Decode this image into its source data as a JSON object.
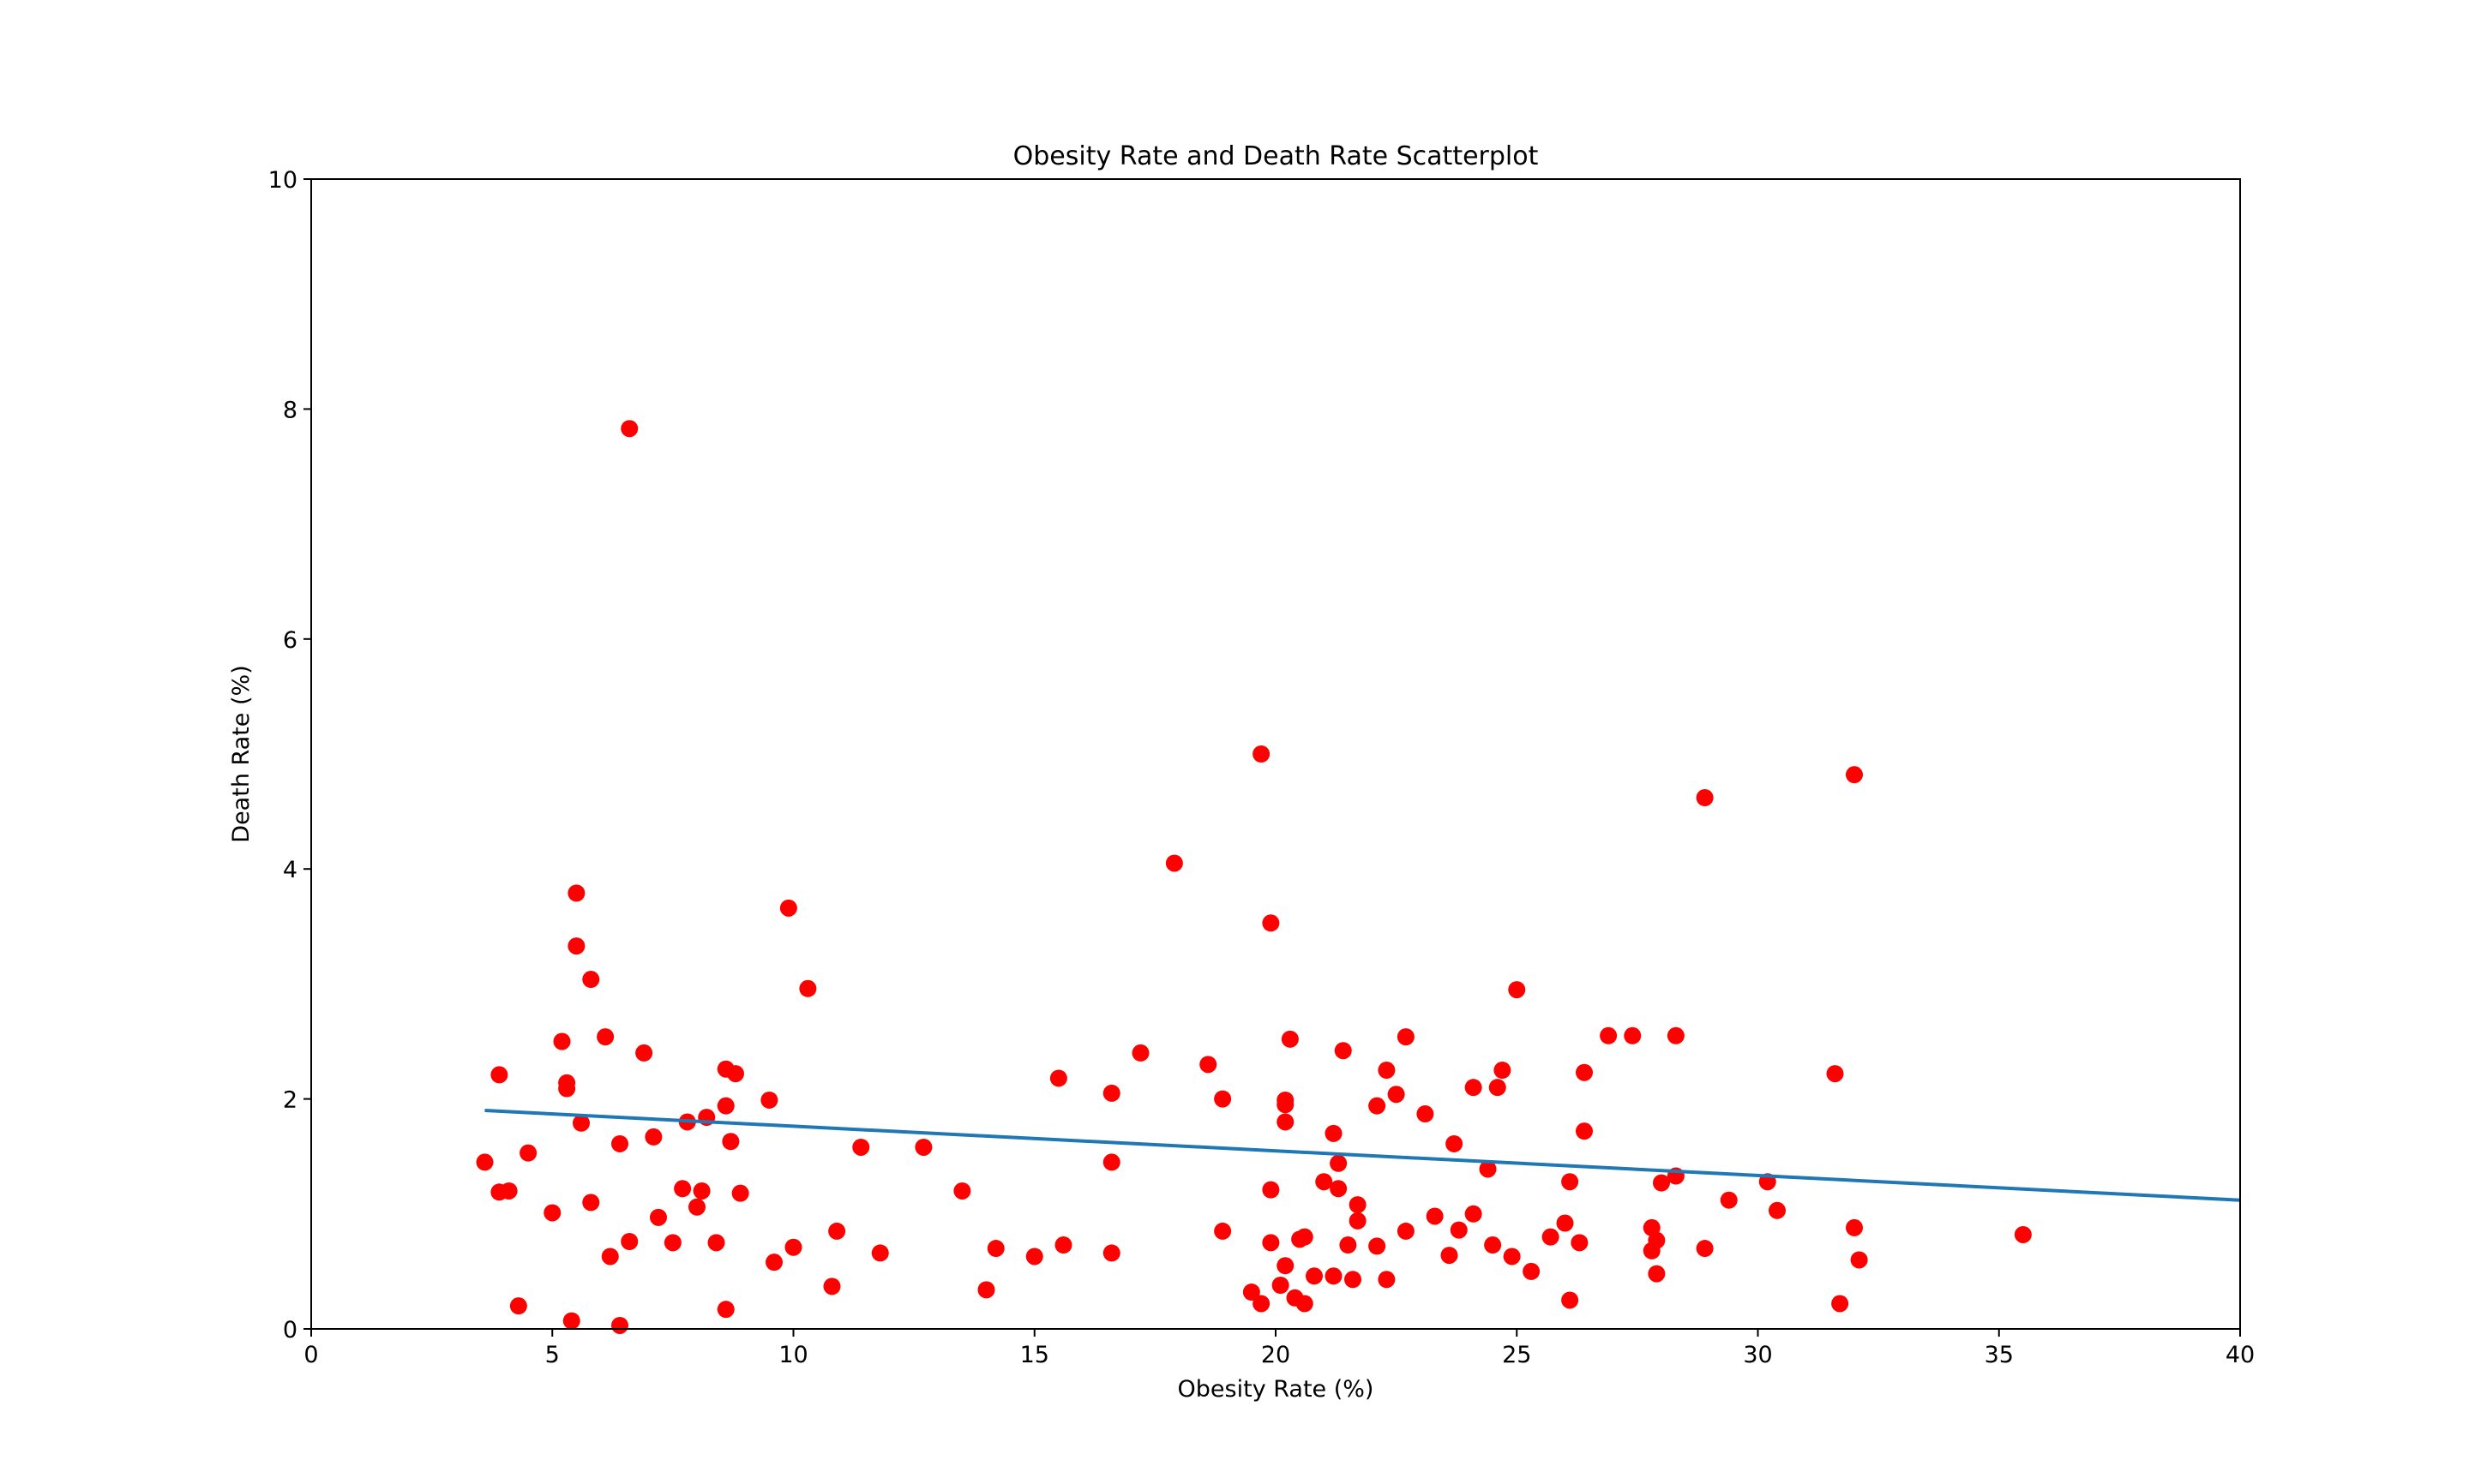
{
  "chart_data": {
    "type": "scatter",
    "title": "Obesity Rate and Death Rate Scatterplot",
    "xlabel": "Obesity Rate (%)",
    "ylabel": "Death Rate (%)",
    "xlim": [
      0,
      40
    ],
    "ylim": [
      0,
      10
    ],
    "xticks": [
      "0",
      "5",
      "10",
      "15",
      "20",
      "25",
      "30",
      "35",
      "40"
    ],
    "yticks": [
      "0",
      "2",
      "4",
      "6",
      "8",
      "10"
    ],
    "grid": false,
    "legend": "none",
    "point_color": "#ff0000",
    "line_color": "#1f77b4",
    "points": [
      [
        3.6,
        1.45
      ],
      [
        3.9,
        2.21
      ],
      [
        3.9,
        1.19
      ],
      [
        4.1,
        1.2
      ],
      [
        4.3,
        0.2
      ],
      [
        4.5,
        1.53
      ],
      [
        5.0,
        1.01
      ],
      [
        5.2,
        2.5
      ],
      [
        5.3,
        2.14
      ],
      [
        5.3,
        2.09
      ],
      [
        5.4,
        0.07
      ],
      [
        5.5,
        3.79
      ],
      [
        5.5,
        3.33
      ],
      [
        5.6,
        1.79
      ],
      [
        5.8,
        3.04
      ],
      [
        5.8,
        1.1
      ],
      [
        6.1,
        2.54
      ],
      [
        6.2,
        0.63
      ],
      [
        6.4,
        1.61
      ],
      [
        6.4,
        0.03
      ],
      [
        6.6,
        7.83
      ],
      [
        6.6,
        0.76
      ],
      [
        6.9,
        2.4
      ],
      [
        7.1,
        1.67
      ],
      [
        7.2,
        0.97
      ],
      [
        7.5,
        0.75
      ],
      [
        7.7,
        1.22
      ],
      [
        7.8,
        1.8
      ],
      [
        8.0,
        1.06
      ],
      [
        8.1,
        1.2
      ],
      [
        8.2,
        1.84
      ],
      [
        8.4,
        0.75
      ],
      [
        8.6,
        2.26
      ],
      [
        8.6,
        1.94
      ],
      [
        8.6,
        0.17
      ],
      [
        8.7,
        1.63
      ],
      [
        8.8,
        2.22
      ],
      [
        8.9,
        1.18
      ],
      [
        9.5,
        1.99
      ],
      [
        9.6,
        0.58
      ],
      [
        9.9,
        3.66
      ],
      [
        10.0,
        0.71
      ],
      [
        10.3,
        2.96
      ],
      [
        10.8,
        0.37
      ],
      [
        10.9,
        0.85
      ],
      [
        11.4,
        1.58
      ],
      [
        11.8,
        0.66
      ],
      [
        12.7,
        1.58
      ],
      [
        13.5,
        1.2
      ],
      [
        14.0,
        0.34
      ],
      [
        14.2,
        0.7
      ],
      [
        15.0,
        0.63
      ],
      [
        15.5,
        2.18
      ],
      [
        15.6,
        0.73
      ],
      [
        16.6,
        2.05
      ],
      [
        16.6,
        1.45
      ],
      [
        16.6,
        0.66
      ],
      [
        17.2,
        2.4
      ],
      [
        17.9,
        4.05
      ],
      [
        18.6,
        2.3
      ],
      [
        18.9,
        2.0
      ],
      [
        18.9,
        0.85
      ],
      [
        19.5,
        0.32
      ],
      [
        19.7,
        5.0
      ],
      [
        19.7,
        0.22
      ],
      [
        19.9,
        3.53
      ],
      [
        19.9,
        1.21
      ],
      [
        19.9,
        0.75
      ],
      [
        20.1,
        0.38
      ],
      [
        20.2,
        1.99
      ],
      [
        20.2,
        1.95
      ],
      [
        20.2,
        1.8
      ],
      [
        20.2,
        0.55
      ],
      [
        20.3,
        2.52
      ],
      [
        20.4,
        0.27
      ],
      [
        20.5,
        0.78
      ],
      [
        20.6,
        0.8
      ],
      [
        20.6,
        0.22
      ],
      [
        20.8,
        0.46
      ],
      [
        21.0,
        1.28
      ],
      [
        21.2,
        1.7
      ],
      [
        21.2,
        0.46
      ],
      [
        21.3,
        1.44
      ],
      [
        21.3,
        1.22
      ],
      [
        21.4,
        2.42
      ],
      [
        21.5,
        0.73
      ],
      [
        21.6,
        0.43
      ],
      [
        21.7,
        1.08
      ],
      [
        21.7,
        0.94
      ],
      [
        22.1,
        1.94
      ],
      [
        22.1,
        0.72
      ],
      [
        22.3,
        2.25
      ],
      [
        22.3,
        0.43
      ],
      [
        22.5,
        2.04
      ],
      [
        22.7,
        2.54
      ],
      [
        22.7,
        0.85
      ],
      [
        23.1,
        1.87
      ],
      [
        23.3,
        0.98
      ],
      [
        23.6,
        0.64
      ],
      [
        23.7,
        1.61
      ],
      [
        23.8,
        0.86
      ],
      [
        24.1,
        2.1
      ],
      [
        24.1,
        1.0
      ],
      [
        24.4,
        1.39
      ],
      [
        24.5,
        0.73
      ],
      [
        24.6,
        2.1
      ],
      [
        24.7,
        2.25
      ],
      [
        24.9,
        0.63
      ],
      [
        25.0,
        2.95
      ],
      [
        25.3,
        0.5
      ],
      [
        25.7,
        0.8
      ],
      [
        26.0,
        0.92
      ],
      [
        26.1,
        1.28
      ],
      [
        26.1,
        0.25
      ],
      [
        26.3,
        0.75
      ],
      [
        26.4,
        2.23
      ],
      [
        26.4,
        1.72
      ],
      [
        26.9,
        2.55
      ],
      [
        27.4,
        2.55
      ],
      [
        27.8,
        0.88
      ],
      [
        27.8,
        0.68
      ],
      [
        27.9,
        0.77
      ],
      [
        27.9,
        0.48
      ],
      [
        28.0,
        1.27
      ],
      [
        28.3,
        2.55
      ],
      [
        28.3,
        1.33
      ],
      [
        28.9,
        4.62
      ],
      [
        28.9,
        0.7
      ],
      [
        29.4,
        1.12
      ],
      [
        30.2,
        1.28
      ],
      [
        30.4,
        1.03
      ],
      [
        31.6,
        2.22
      ],
      [
        31.7,
        0.22
      ],
      [
        32.0,
        4.82
      ],
      [
        32.0,
        0.88
      ],
      [
        32.1,
        0.6
      ],
      [
        35.5,
        0.82
      ]
    ],
    "trendline": {
      "x": [
        3.6,
        40.0
      ],
      "y": [
        1.9,
        1.12
      ]
    }
  }
}
